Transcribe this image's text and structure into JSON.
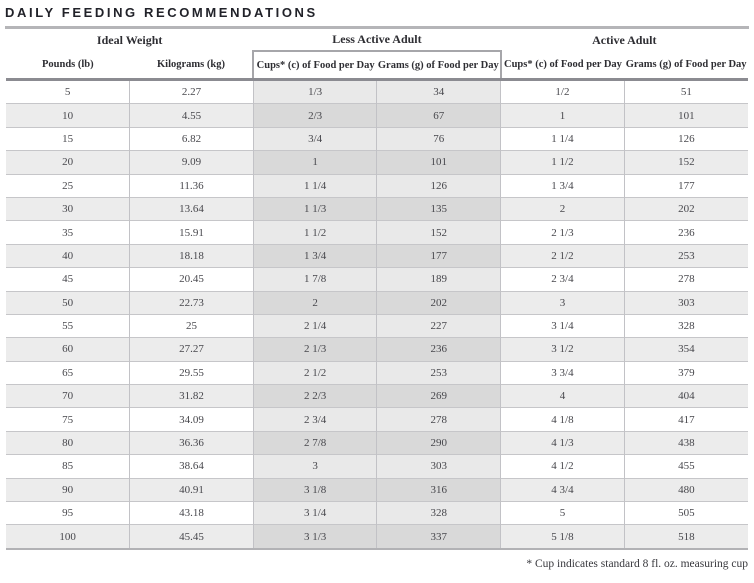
{
  "title": "DAILY FEEDING RECOMMENDATIONS",
  "footnote": "* Cup indicates standard 8 fl. oz. measuring cup",
  "colors": {
    "title_text": "#212229",
    "row_stripe": "#ececec",
    "less_active_highlight_light": "#e9e9e9",
    "less_active_highlight_dark": "#d9d9d9",
    "grid_line": "#c6c6c9",
    "header_rule": "#8b8b91"
  },
  "table": {
    "groups": [
      {
        "label": "Ideal Weight",
        "span": 2
      },
      {
        "label": "Less Active Adult",
        "span": 2
      },
      {
        "label": "Active Adult",
        "span": 2
      }
    ],
    "columns": [
      "Pounds (lb)",
      "Kilograms (kg)",
      "Cups* (c) of Food per Day",
      "Grams (g) of Food per Day",
      "Cups* (c) of Food per Day",
      "Grams (g) of Food per Day"
    ],
    "rows": [
      [
        "5",
        "2.27",
        "1/3",
        "34",
        "1/2",
        "51"
      ],
      [
        "10",
        "4.55",
        "2/3",
        "67",
        "1",
        "101"
      ],
      [
        "15",
        "6.82",
        "3/4",
        "76",
        "1 1/4",
        "126"
      ],
      [
        "20",
        "9.09",
        "1",
        "101",
        "1 1/2",
        "152"
      ],
      [
        "25",
        "11.36",
        "1 1/4",
        "126",
        "1 3/4",
        "177"
      ],
      [
        "30",
        "13.64",
        "1 1/3",
        "135",
        "2",
        "202"
      ],
      [
        "35",
        "15.91",
        "1 1/2",
        "152",
        "2 1/3",
        "236"
      ],
      [
        "40",
        "18.18",
        "1 3/4",
        "177",
        "2 1/2",
        "253"
      ],
      [
        "45",
        "20.45",
        "1 7/8",
        "189",
        "2 3/4",
        "278"
      ],
      [
        "50",
        "22.73",
        "2",
        "202",
        "3",
        "303"
      ],
      [
        "55",
        "25",
        "2 1/4",
        "227",
        "3 1/4",
        "328"
      ],
      [
        "60",
        "27.27",
        "2 1/3",
        "236",
        "3 1/2",
        "354"
      ],
      [
        "65",
        "29.55",
        "2 1/2",
        "253",
        "3 3/4",
        "379"
      ],
      [
        "70",
        "31.82",
        "2 2/3",
        "269",
        "4",
        "404"
      ],
      [
        "75",
        "34.09",
        "2 3/4",
        "278",
        "4 1/8",
        "417"
      ],
      [
        "80",
        "36.36",
        "2 7/8",
        "290",
        "4 1/3",
        "438"
      ],
      [
        "85",
        "38.64",
        "3",
        "303",
        "4 1/2",
        "455"
      ],
      [
        "90",
        "40.91",
        "3 1/8",
        "316",
        "4 3/4",
        "480"
      ],
      [
        "95",
        "43.18",
        "3 1/4",
        "328",
        "5",
        "505"
      ],
      [
        "100",
        "45.45",
        "3 1/3",
        "337",
        "5 1/8",
        "518"
      ]
    ]
  },
  "chart_data": {
    "type": "table",
    "title": "DAILY FEEDING RECOMMENDATIONS",
    "columns": [
      "Pounds (lb)",
      "Kilograms (kg)",
      "Less Active Adult Cups* (c) of Food per Day",
      "Less Active Adult Grams (g) of Food per Day",
      "Active Adult Cups* (c) of Food per Day",
      "Active Adult Grams (g) of Food per Day"
    ],
    "rows": [
      [
        "5",
        "2.27",
        "1/3",
        "34",
        "1/2",
        "51"
      ],
      [
        "10",
        "4.55",
        "2/3",
        "67",
        "1",
        "101"
      ],
      [
        "15",
        "6.82",
        "3/4",
        "76",
        "1 1/4",
        "126"
      ],
      [
        "20",
        "9.09",
        "1",
        "101",
        "1 1/2",
        "152"
      ],
      [
        "25",
        "11.36",
        "1 1/4",
        "126",
        "1 3/4",
        "177"
      ],
      [
        "30",
        "13.64",
        "1 1/3",
        "135",
        "2",
        "202"
      ],
      [
        "35",
        "15.91",
        "1 1/2",
        "152",
        "2 1/3",
        "236"
      ],
      [
        "40",
        "18.18",
        "1 3/4",
        "177",
        "2 1/2",
        "253"
      ],
      [
        "45",
        "20.45",
        "1 7/8",
        "189",
        "2 3/4",
        "278"
      ],
      [
        "50",
        "22.73",
        "2",
        "202",
        "3",
        "303"
      ],
      [
        "55",
        "25",
        "2 1/4",
        "227",
        "3 1/4",
        "328"
      ],
      [
        "60",
        "27.27",
        "2 1/3",
        "236",
        "3 1/2",
        "354"
      ],
      [
        "65",
        "29.55",
        "2 1/2",
        "253",
        "3 3/4",
        "379"
      ],
      [
        "70",
        "31.82",
        "2 2/3",
        "269",
        "4",
        "404"
      ],
      [
        "75",
        "34.09",
        "2 3/4",
        "278",
        "4 1/8",
        "417"
      ],
      [
        "80",
        "36.36",
        "2 7/8",
        "290",
        "4 1/3",
        "438"
      ],
      [
        "85",
        "38.64",
        "3",
        "303",
        "4 1/2",
        "455"
      ],
      [
        "90",
        "40.91",
        "3 1/8",
        "316",
        "4 3/4",
        "480"
      ],
      [
        "95",
        "43.18",
        "3 1/4",
        "328",
        "5",
        "505"
      ],
      [
        "100",
        "45.45",
        "3 1/3",
        "337",
        "5 1/8",
        "518"
      ]
    ],
    "footnote": "* Cup indicates standard 8 fl. oz. measuring cup"
  }
}
